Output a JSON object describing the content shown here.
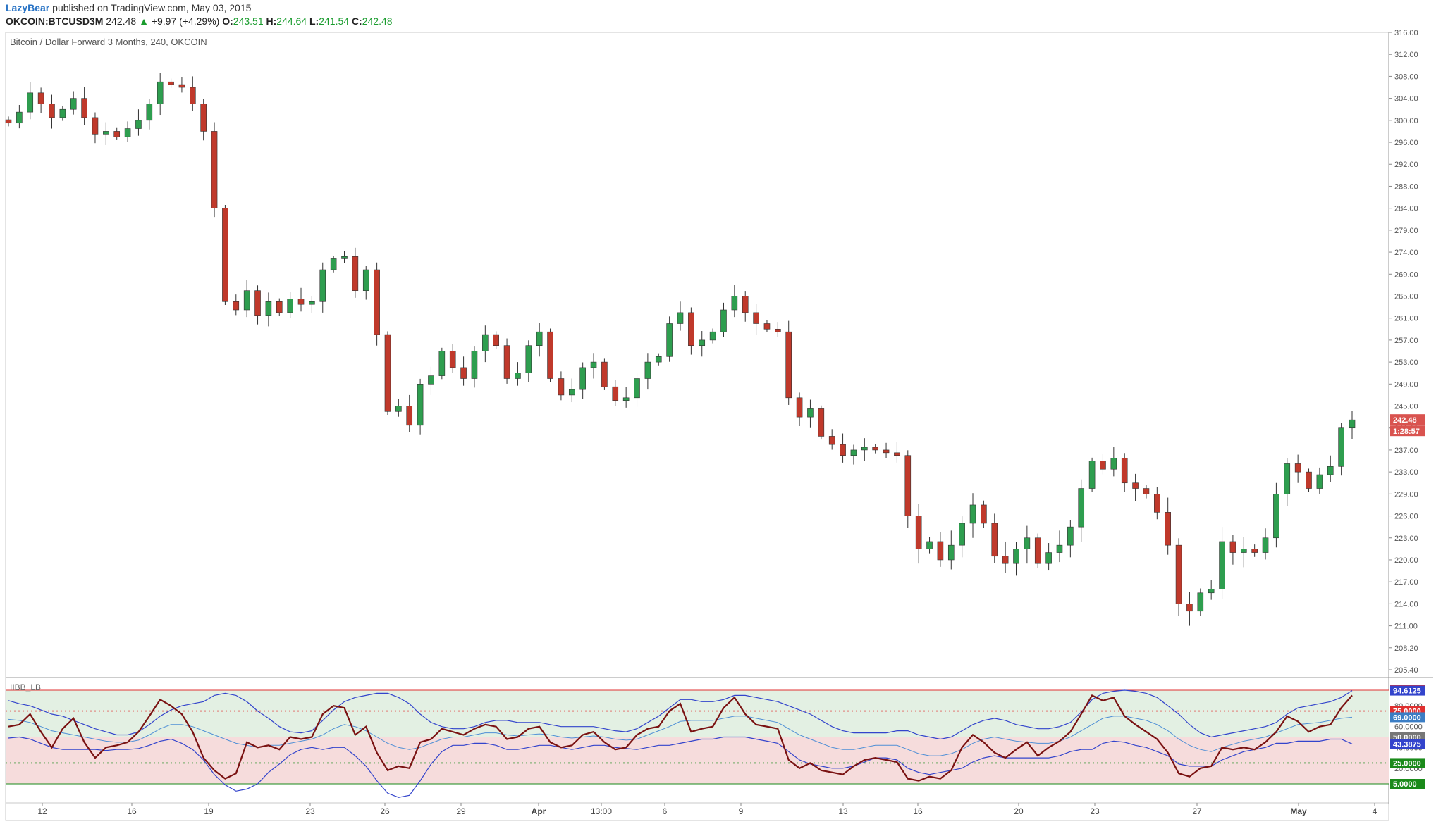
{
  "header": {
    "user": "LazyBear",
    "published": "published on TradingView.com, May 03, 2015"
  },
  "quote": {
    "symbol": "OKCOIN:BTCUSD3M",
    "last": "242.48",
    "arrow": "▲",
    "change": "+9.97 (+4.29%)",
    "o_label": "O:",
    "o": "243.51",
    "h_label": "H:",
    "h": "244.64",
    "l_label": "L:",
    "l": "241.54",
    "c_label": "C:",
    "c": "242.48"
  },
  "colors": {
    "up": "#2e9e4f",
    "down": "#c0392b",
    "indicator_line": "#7a1212",
    "band": "#3344cc",
    "basis": "#4f8fd6",
    "ob_fill": "#e3f0e3",
    "os_fill": "#f6dcdc",
    "price_badge": "#d9534f"
  },
  "chart_data": [
    {
      "type": "candlestick",
      "title": "Bitcoin / Dollar Forward 3 Months, 240, OKCOIN",
      "y_ticks": [
        205.4,
        208.2,
        211.0,
        214.0,
        217.0,
        220.0,
        223.0,
        226.0,
        229.0,
        233.0,
        237.0,
        241.0,
        245.0,
        249.0,
        253.0,
        257.0,
        261.0,
        265.0,
        269.0,
        274.0,
        279.0,
        284.0,
        288.0,
        292.0,
        296.0,
        300.0,
        304.0,
        308.0,
        312.0,
        316.0
      ],
      "ylim": [
        205.4,
        316.0
      ],
      "last_price": "242.48",
      "countdown": "1:28:57",
      "x_labels": [
        "12",
        "16",
        "19",
        "23",
        "26",
        "29",
        "Apr",
        "13:00",
        "6",
        "9",
        "13",
        "16",
        "20",
        "23",
        "27",
        "May",
        "4"
      ],
      "closes": [
        299.5,
        301.5,
        305.0,
        303.0,
        300.5,
        302.0,
        304.0,
        300.5,
        297.5,
        298.0,
        297.0,
        298.5,
        300.0,
        303.0,
        307.0,
        306.5,
        306.0,
        303.0,
        298.0,
        284.0,
        264.0,
        262.5,
        266.0,
        261.5,
        264.0,
        262.0,
        264.5,
        263.5,
        264.0,
        270.0,
        272.5,
        273.0,
        266.0,
        270.0,
        258.0,
        244.0,
        245.0,
        241.5,
        249.0,
        250.5,
        255.0,
        252.0,
        250.0,
        255.0,
        258.0,
        256.0,
        250.0,
        251.0,
        256.0,
        258.5,
        250.0,
        247.0,
        248.0,
        252.0,
        253.0,
        248.5,
        246.0,
        246.5,
        250.0,
        253.0,
        254.0,
        260.0,
        262.0,
        256.0,
        257.0,
        258.5,
        262.5,
        265.0,
        262.0,
        260.0,
        259.0,
        258.5,
        246.5,
        243.0,
        244.5,
        239.5,
        238.0,
        236.0,
        237.0,
        237.5,
        237.0,
        236.5,
        236.0,
        226.0,
        221.5,
        222.5,
        220.0,
        222.0,
        225.0,
        227.5,
        225.0,
        220.5,
        219.5,
        221.5,
        223.0,
        219.5,
        221.0,
        222.0,
        224.5,
        230.0,
        235.0,
        233.5,
        235.5,
        231.0,
        230.0,
        229.0,
        226.5,
        222.0,
        214.0,
        213.0,
        215.5,
        216.0,
        222.5,
        221.0,
        221.5,
        221.0,
        223.0,
        229.0,
        234.5,
        233.0,
        230.0,
        232.5,
        234.0,
        241.0,
        242.48
      ]
    },
    {
      "type": "line",
      "title": "IIBB_LB",
      "ylim": [
        0,
        100
      ],
      "y_ticks": [
        20,
        40,
        60,
        80
      ],
      "levels": [
        {
          "label": "95.0000",
          "value": 95,
          "color": "#e03030"
        },
        {
          "label": "75.0000",
          "value": 75,
          "color": "#e03030"
        },
        {
          "label": "50.0000",
          "value": 50,
          "color": "#777777"
        },
        {
          "label": "25.0000",
          "value": 25,
          "color": "#1a8a1a"
        },
        {
          "label": "5.0000",
          "value": 5,
          "color": "#1a8a1a"
        }
      ],
      "readouts": [
        {
          "label": "94.6125",
          "value": 94.6125,
          "color": "#3344cc"
        },
        {
          "label": "69.0000",
          "value": 69.0,
          "color": "#3b7dc4"
        },
        {
          "label": "43.3875",
          "value": 43.3875,
          "color": "#3344cc"
        }
      ],
      "series": [
        {
          "values": [
            60,
            62,
            72,
            55,
            40,
            58,
            68,
            45,
            30,
            40,
            42,
            45,
            55,
            70,
            86,
            80,
            72,
            55,
            30,
            18,
            10,
            15,
            45,
            40,
            42,
            38,
            50,
            48,
            50,
            72,
            80,
            78,
            52,
            60,
            35,
            18,
            22,
            20,
            45,
            48,
            58,
            55,
            52,
            58,
            62,
            60,
            48,
            50,
            58,
            60,
            45,
            40,
            42,
            52,
            55,
            45,
            38,
            40,
            52,
            58,
            60,
            75,
            82,
            55,
            58,
            60,
            78,
            88,
            72,
            62,
            60,
            58,
            28,
            20,
            25,
            18,
            16,
            14,
            22,
            28,
            30,
            28,
            26,
            10,
            8,
            12,
            10,
            18,
            40,
            52,
            45,
            35,
            30,
            38,
            45,
            32,
            40,
            46,
            55,
            72,
            90,
            85,
            88,
            70,
            62,
            55,
            48,
            35,
            15,
            12,
            20,
            22,
            40,
            38,
            40,
            38,
            45,
            55,
            70,
            65,
            55,
            60,
            62,
            78,
            90
          ]
        },
        {
          "values": [
            85,
            82,
            80,
            76,
            72,
            70,
            66,
            62,
            58,
            55,
            52,
            52,
            55,
            62,
            70,
            76,
            80,
            82,
            84,
            90,
            92,
            90,
            84,
            75,
            68,
            60,
            55,
            54,
            56,
            66,
            76,
            84,
            88,
            90,
            92,
            92,
            88,
            82,
            72,
            64,
            60,
            58,
            58,
            60,
            64,
            66,
            66,
            64,
            64,
            64,
            62,
            60,
            60,
            60,
            60,
            58,
            56,
            55,
            58,
            64,
            70,
            78,
            86,
            86,
            84,
            84,
            86,
            90,
            90,
            88,
            86,
            84,
            80,
            76,
            72,
            66,
            60,
            56,
            54,
            54,
            54,
            54,
            56,
            56,
            52,
            50,
            48,
            50,
            56,
            62,
            66,
            68,
            66,
            62,
            60,
            58,
            58,
            60,
            64,
            74,
            86,
            92,
            94,
            95,
            94,
            92,
            88,
            80,
            72,
            62,
            54,
            50,
            52,
            54,
            56,
            58,
            60,
            64,
            72,
            78,
            80,
            82,
            84,
            88,
            94.6125
          ]
        },
        {
          "values": [
            67,
            66,
            64,
            60,
            56,
            54,
            52,
            50,
            48,
            46,
            45,
            45,
            47,
            52,
            58,
            62,
            62,
            60,
            56,
            52,
            48,
            44,
            42,
            40,
            42,
            42,
            44,
            46,
            48,
            52,
            58,
            62,
            60,
            56,
            50,
            44,
            40,
            38,
            40,
            44,
            48,
            50,
            50,
            52,
            54,
            54,
            52,
            51,
            52,
            53,
            52,
            50,
            49,
            50,
            51,
            50,
            48,
            47,
            48,
            52,
            56,
            60,
            65,
            66,
            66,
            66,
            68,
            70,
            70,
            68,
            66,
            64,
            58,
            52,
            48,
            44,
            40,
            38,
            38,
            40,
            42,
            42,
            42,
            38,
            34,
            32,
            32,
            34,
            38,
            44,
            48,
            50,
            48,
            46,
            45,
            44,
            44,
            46,
            50,
            56,
            62,
            68,
            70,
            70,
            68,
            66,
            62,
            56,
            48,
            42,
            38,
            36,
            40,
            43,
            46,
            48,
            50,
            54,
            58,
            62,
            63,
            64,
            66,
            68,
            69
          ]
        },
        {
          "values": [
            49,
            50,
            48,
            44,
            40,
            38,
            38,
            38,
            38,
            37,
            38,
            38,
            39,
            42,
            46,
            48,
            44,
            38,
            28,
            14,
            4,
            -2,
            0,
            5,
            16,
            24,
            33,
            38,
            40,
            38,
            40,
            40,
            32,
            22,
            8,
            -4,
            -8,
            -6,
            8,
            24,
            36,
            42,
            42,
            44,
            44,
            42,
            38,
            38,
            40,
            42,
            42,
            40,
            38,
            40,
            42,
            42,
            40,
            39,
            38,
            40,
            42,
            42,
            44,
            46,
            48,
            48,
            50,
            50,
            50,
            48,
            46,
            44,
            36,
            28,
            24,
            22,
            20,
            20,
            22,
            26,
            30,
            30,
            28,
            20,
            16,
            14,
            16,
            18,
            20,
            26,
            30,
            32,
            30,
            30,
            30,
            30,
            30,
            32,
            36,
            38,
            38,
            44,
            46,
            45,
            42,
            40,
            36,
            32,
            24,
            22,
            22,
            22,
            28,
            32,
            36,
            38,
            40,
            44,
            44,
            46,
            46,
            46,
            48,
            48,
            43.3875
          ]
        }
      ]
    }
  ]
}
